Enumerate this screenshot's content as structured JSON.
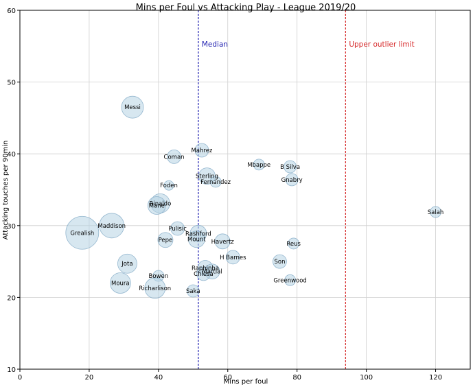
{
  "chart_data": {
    "type": "scatter",
    "title": "Mins per Foul vs Attacking Play - League 2019/20",
    "xlabel": "Mins per foul",
    "ylabel": "Attacking touches per 90min",
    "xlim": [
      0,
      130
    ],
    "ylim": [
      10,
      60
    ],
    "xticks": [
      0,
      20,
      40,
      60,
      80,
      100,
      120
    ],
    "yticks": [
      10,
      20,
      30,
      40,
      50,
      60
    ],
    "grid": true,
    "reference_lines": [
      {
        "label": "Median",
        "x": 51.5,
        "color": "#1f1fb0"
      },
      {
        "label": "Upper outlier limit",
        "x": 94,
        "color": "#d62728"
      }
    ],
    "bubble_color": "#b7d3e4",
    "points": [
      {
        "label": "Messi",
        "x": 32.5,
        "y": 46.5,
        "size": 16
      },
      {
        "label": "Mahrez",
        "x": 52.5,
        "y": 40.5,
        "size": 10
      },
      {
        "label": "Coman",
        "x": 44.5,
        "y": 39.6,
        "size": 10
      },
      {
        "label": "Mbappe",
        "x": 69,
        "y": 38.5,
        "size": 8
      },
      {
        "label": "B Silva",
        "x": 78,
        "y": 38.2,
        "size": 9
      },
      {
        "label": "Sterling",
        "x": 54,
        "y": 36.9,
        "size": 12
      },
      {
        "label": "Gnabry",
        "x": 78.5,
        "y": 36.4,
        "size": 9
      },
      {
        "label": "Fernandez",
        "x": 56.5,
        "y": 36.1,
        "size": 8
      },
      {
        "label": "Foden",
        "x": 43,
        "y": 35.6,
        "size": 7
      },
      {
        "label": "Rinaldo",
        "x": 40.5,
        "y": 33.1,
        "size": 14
      },
      {
        "label": "Mane",
        "x": 39.5,
        "y": 32.8,
        "size": 13
      },
      {
        "label": "Salah",
        "x": 120,
        "y": 31.9,
        "size": 8
      },
      {
        "label": "Maddison",
        "x": 26.5,
        "y": 30,
        "size": 18
      },
      {
        "label": "Pulisic",
        "x": 45.5,
        "y": 29.6,
        "size": 10
      },
      {
        "label": "Grealish",
        "x": 18,
        "y": 29,
        "size": 24
      },
      {
        "label": "Rashford",
        "x": 51.5,
        "y": 28.9,
        "size": 12
      },
      {
        "label": "Mount",
        "x": 51,
        "y": 28.1,
        "size": 12
      },
      {
        "label": "Pepe",
        "x": 42,
        "y": 28,
        "size": 11
      },
      {
        "label": "Havertz",
        "x": 58.5,
        "y": 27.8,
        "size": 11
      },
      {
        "label": "Reus",
        "x": 79,
        "y": 27.5,
        "size": 8
      },
      {
        "label": "H Barnes",
        "x": 61.5,
        "y": 25.6,
        "size": 10
      },
      {
        "label": "Son",
        "x": 75,
        "y": 25,
        "size": 10
      },
      {
        "label": "Jota",
        "x": 31,
        "y": 24.7,
        "size": 14
      },
      {
        "label": "Raphinha",
        "x": 53.5,
        "y": 24.1,
        "size": 11
      },
      {
        "label": "Martial",
        "x": 55.5,
        "y": 23.6,
        "size": 11
      },
      {
        "label": "Chiesa",
        "x": 53,
        "y": 23.3,
        "size": 10
      },
      {
        "label": "Bowen",
        "x": 40,
        "y": 23,
        "size": 8
      },
      {
        "label": "Greenwood",
        "x": 78,
        "y": 22.4,
        "size": 8
      },
      {
        "label": "Moura",
        "x": 29,
        "y": 22,
        "size": 15
      },
      {
        "label": "Richarlison",
        "x": 39,
        "y": 21.3,
        "size": 15
      },
      {
        "label": "Saka",
        "x": 50,
        "y": 20.9,
        "size": 9
      }
    ]
  }
}
